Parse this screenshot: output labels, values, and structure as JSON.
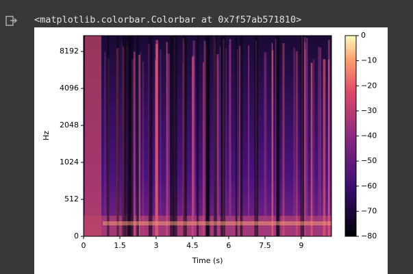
{
  "output_text": "<matplotlib.colorbar.Colorbar at 0x7f57ab571810>",
  "chart_data": {
    "type": "spectrogram",
    "xlabel": "Time (s)",
    "ylabel": "Hz",
    "xlim": [
      0,
      10.25
    ],
    "xticks": [
      0,
      1.5,
      3,
      4.5,
      6,
      7.5,
      9
    ],
    "ylim": [
      0,
      11025
    ],
    "yscale": "symlog",
    "ylinthresh": 512,
    "yticks": [
      0,
      512,
      1024,
      2048,
      4096,
      8192
    ],
    "colormap": "magma",
    "colorbar": {
      "lim": [
        -80,
        0
      ],
      "ticks": [
        0,
        {
          "value": -10,
          "label": "−10"
        },
        {
          "value": -20,
          "label": "−20"
        },
        {
          "value": -30,
          "label": "−30"
        },
        {
          "value": -40,
          "label": "−40"
        },
        {
          "value": -50,
          "label": "−50"
        },
        {
          "value": -60,
          "label": "−60"
        },
        {
          "value": -70,
          "label": "−70"
        },
        {
          "value": -80,
          "label": "−80"
        }
      ]
    }
  }
}
